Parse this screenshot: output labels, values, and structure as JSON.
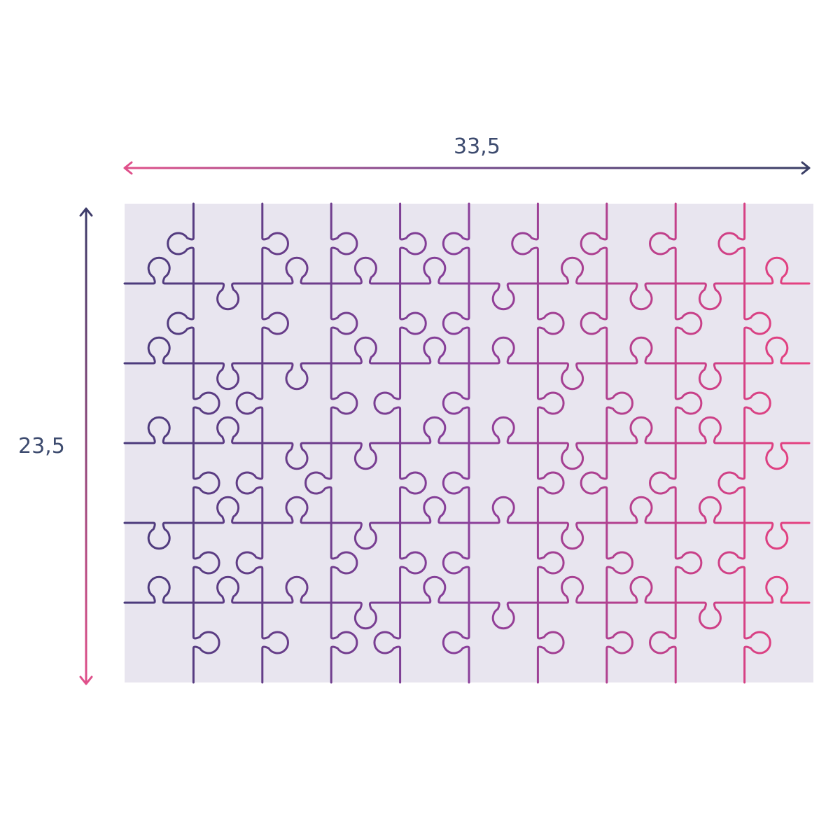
{
  "dimensions": {
    "width_label": "33,5",
    "height_label": "23,5"
  },
  "puzzle": {
    "columns": 10,
    "rows": 6,
    "background": "#e8e5ef"
  },
  "colors": {
    "text": "#3c4a6e",
    "gradient_start": "#4a3b7b",
    "gradient_end": "#e8417f"
  }
}
